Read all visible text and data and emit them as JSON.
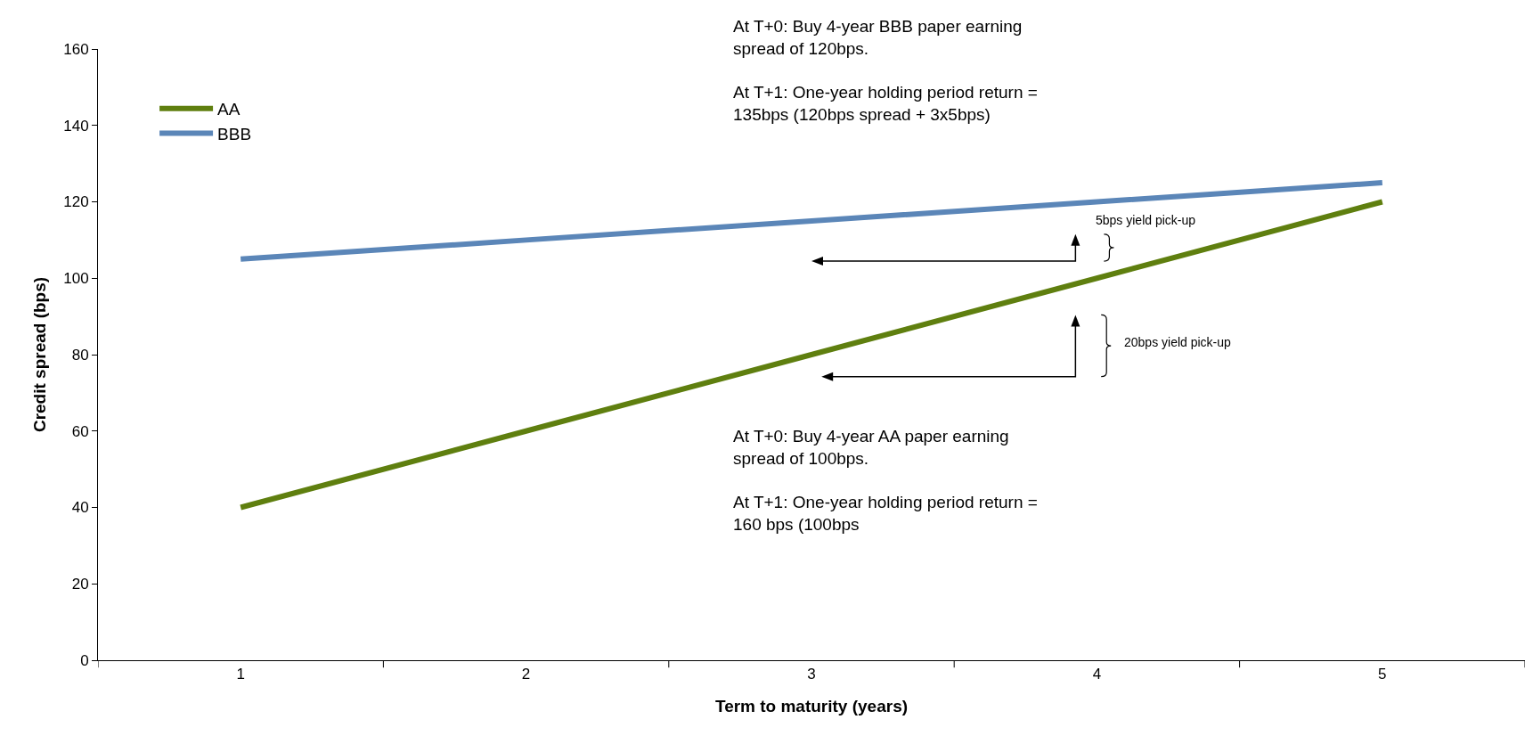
{
  "chart_data": {
    "type": "line",
    "xlabel": "Term to maturity (years)",
    "ylabel": "Credit spread (bps)",
    "categories": [
      "1",
      "2",
      "3",
      "4",
      "5"
    ],
    "series": [
      {
        "name": "AA",
        "color": "#5f7f0f",
        "values": [
          40,
          60,
          80,
          100,
          120
        ]
      },
      {
        "name": "BBB",
        "color": "#5b86b8",
        "values": [
          105,
          110,
          115,
          120,
          125
        ]
      }
    ],
    "ylim": [
      0,
      160
    ],
    "yticks": [
      0,
      20,
      40,
      60,
      80,
      100,
      120,
      140,
      160
    ],
    "grid": false,
    "legend": "top left",
    "marker": "none",
    "line_style": "solid",
    "annotations": [
      "At T+0: Buy 4-year BBB paper earning\nspread of 120bps.\n\nAt T+1: One-year holding period return =\n135bps (120bps spread + 3x5bps)",
      "At T+0: Buy 4-year AA paper earning\nspread of 100bps.\n\nAt T+1: One-year holding period return =\n160 bps (100bps",
      "5bps yield pick-up",
      "20bps yield pick-up"
    ]
  }
}
